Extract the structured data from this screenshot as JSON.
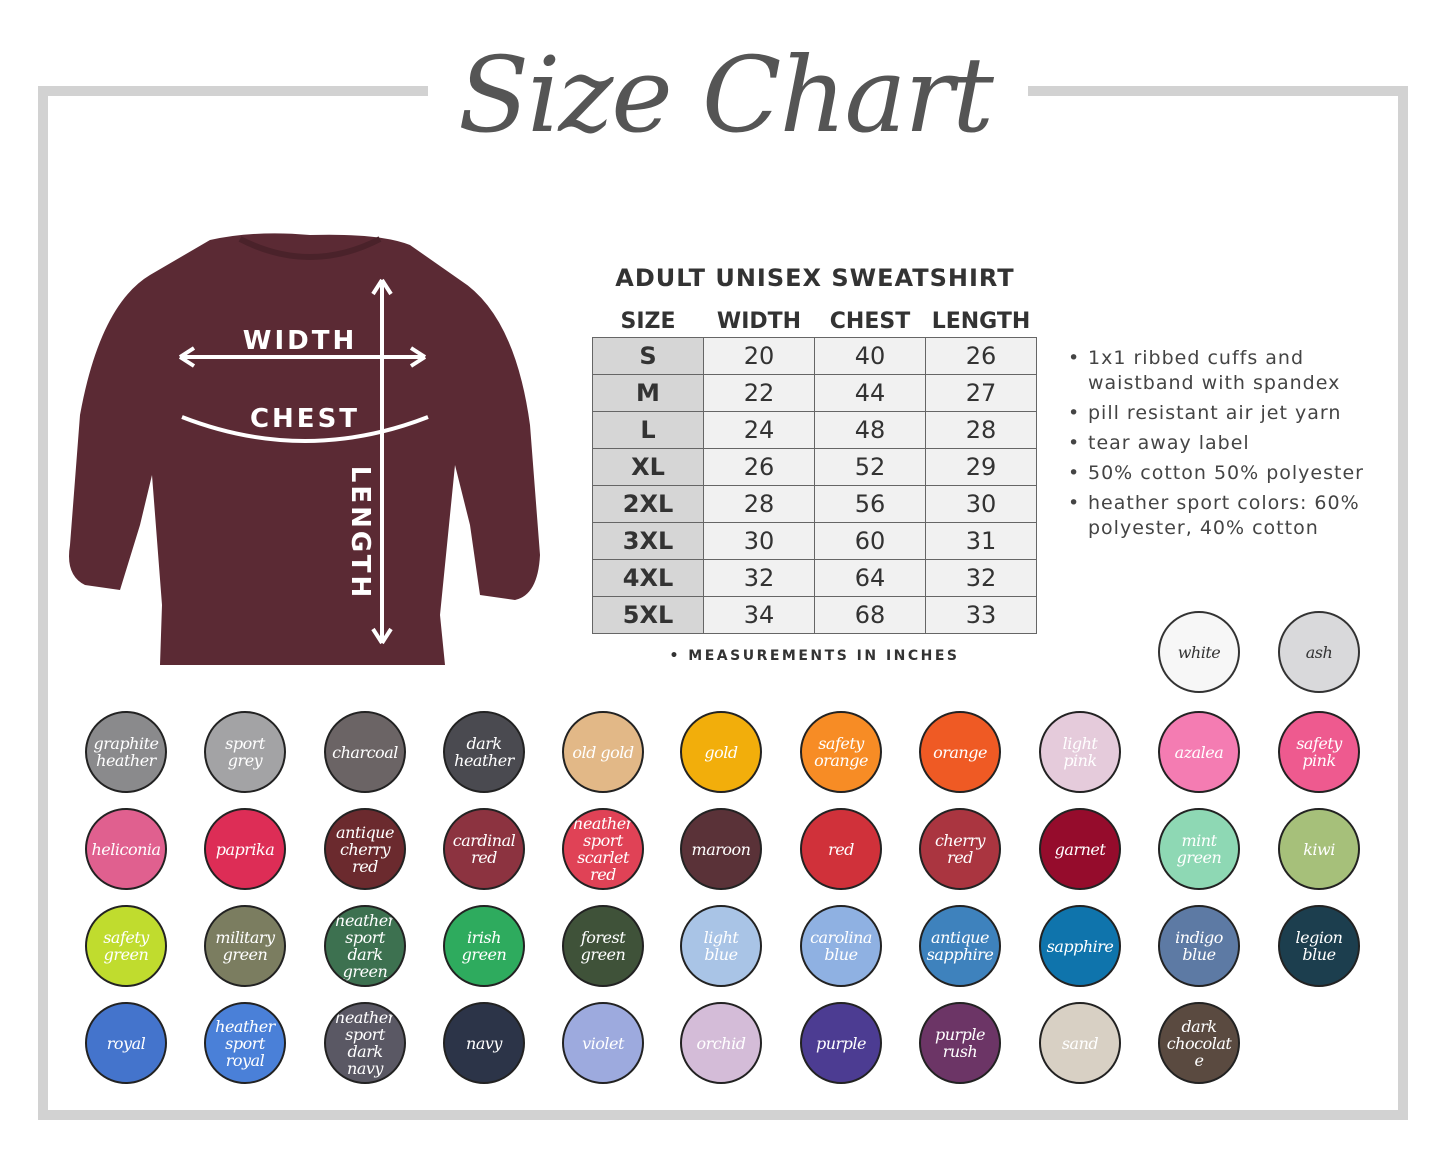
{
  "title": "Size Chart",
  "garment": {
    "labels": {
      "width": "WIDTH",
      "chest": "CHEST",
      "length": "LENGTH"
    },
    "color": "#5b2a34"
  },
  "table": {
    "title": "ADULT UNISEX SWEATSHIRT",
    "headers": [
      "SIZE",
      "WIDTH",
      "CHEST",
      "LENGTH"
    ],
    "rows": [
      [
        "S",
        "20",
        "40",
        "26"
      ],
      [
        "M",
        "22",
        "44",
        "27"
      ],
      [
        "L",
        "24",
        "48",
        "28"
      ],
      [
        "XL",
        "26",
        "52",
        "29"
      ],
      [
        "2XL",
        "28",
        "56",
        "30"
      ],
      [
        "3XL",
        "30",
        "60",
        "31"
      ],
      [
        "4XL",
        "32",
        "64",
        "32"
      ],
      [
        "5XL",
        "34",
        "68",
        "33"
      ]
    ],
    "note": "• MEASUREMENTS IN INCHES"
  },
  "features": [
    "1x1 ribbed cuffs and waistband with spandex",
    "pill resistant air jet yarn",
    "tear away label",
    "50% cotton 50% polyester",
    "heather sport colors: 60% polyester, 40% cotton"
  ],
  "colors": [
    {
      "name": "white",
      "hex": "#f7f7f7"
    },
    {
      "name": "ash",
      "hex": "#d9d9db"
    },
    {
      "name": "graphite heather",
      "hex": "#8a8a8c"
    },
    {
      "name": "sport grey",
      "hex": "#a3a3a5"
    },
    {
      "name": "charcoal",
      "hex": "#6b6465"
    },
    {
      "name": "dark heather",
      "hex": "#4a4a50"
    },
    {
      "name": "old gold",
      "hex": "#e2b887"
    },
    {
      "name": "gold",
      "hex": "#f2ae0b"
    },
    {
      "name": "safety orange",
      "hex": "#f78c25"
    },
    {
      "name": "orange",
      "hex": "#ef5a24"
    },
    {
      "name": "light pink",
      "hex": "#e5cbdb"
    },
    {
      "name": "azalea",
      "hex": "#f47cb2"
    },
    {
      "name": "safety pink",
      "hex": "#ee5a8f"
    },
    {
      "name": "heliconia",
      "hex": "#e0608f"
    },
    {
      "name": "paprika",
      "hex": "#dd2d56"
    },
    {
      "name": "antique cherry red",
      "hex": "#6b2a2e"
    },
    {
      "name": "cardinal red",
      "hex": "#8c3340"
    },
    {
      "name": "heather sport scarlet red",
      "hex": "#e04256"
    },
    {
      "name": "maroon",
      "hex": "#5a3238"
    },
    {
      "name": "red",
      "hex": "#d0313a"
    },
    {
      "name": "cherry red",
      "hex": "#aa3540"
    },
    {
      "name": "garnet",
      "hex": "#950c2c"
    },
    {
      "name": "mint green",
      "hex": "#8ed8b4"
    },
    {
      "name": "kiwi",
      "hex": "#a6c07a"
    },
    {
      "name": "safety green",
      "hex": "#c0dc2e"
    },
    {
      "name": "military green",
      "hex": "#7b7d60"
    },
    {
      "name": "heather sport dark green",
      "hex": "#3d7150"
    },
    {
      "name": "irish green",
      "hex": "#2eab5e"
    },
    {
      "name": "forest green",
      "hex": "#3f5239"
    },
    {
      "name": "light blue",
      "hex": "#a9c4e6"
    },
    {
      "name": "carolina blue",
      "hex": "#8fb1e2"
    },
    {
      "name": "antique sapphire",
      "hex": "#3e82bd"
    },
    {
      "name": "sapphire",
      "hex": "#0f74ac"
    },
    {
      "name": "indigo blue",
      "hex": "#5d7aa4"
    },
    {
      "name": "legion blue",
      "hex": "#1c3e4e"
    },
    {
      "name": "royal",
      "hex": "#4474cc"
    },
    {
      "name": "heather sport royal",
      "hex": "#4a80d8"
    },
    {
      "name": "heather sport dark navy",
      "hex": "#5a5864"
    },
    {
      "name": "navy",
      "hex": "#2c3448"
    },
    {
      "name": "violet",
      "hex": "#9daade"
    },
    {
      "name": "orchid",
      "hex": "#d4bcd8"
    },
    {
      "name": "purple",
      "hex": "#4c3c92"
    },
    {
      "name": "purple rush",
      "hex": "#6c3566"
    },
    {
      "name": "sand",
      "hex": "#d8d0c4"
    },
    {
      "name": "dark chocolate",
      "hex": "#5a4a40"
    }
  ]
}
